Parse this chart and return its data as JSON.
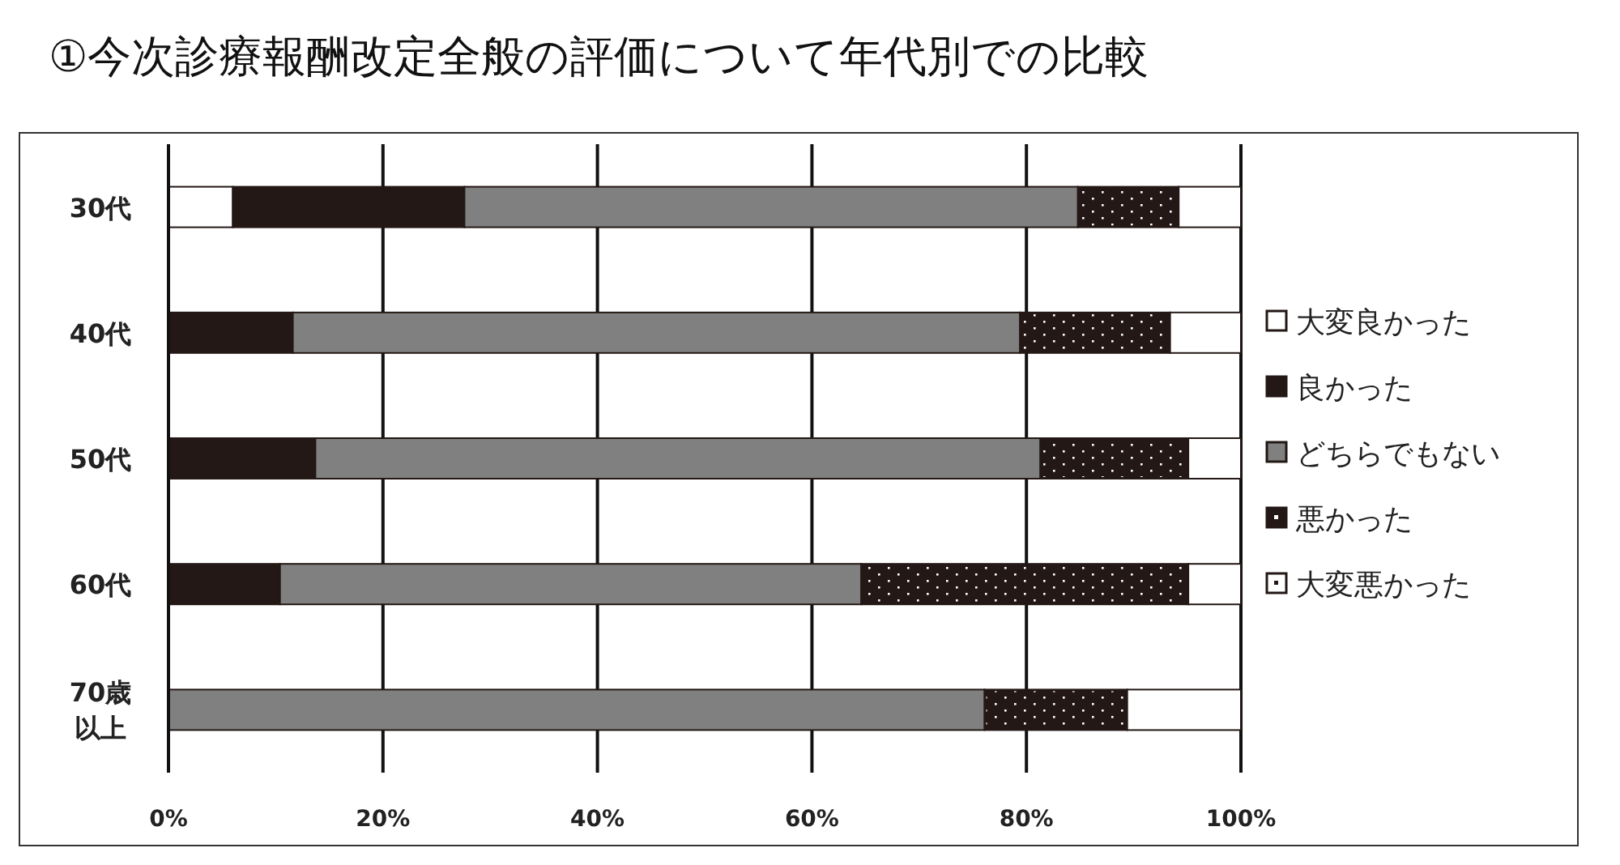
{
  "chart_data": {
    "type": "bar",
    "orientation": "horizontal",
    "stacked": true,
    "title": "①今次診療報酬改定全般の評価について年代別での比較",
    "categories": [
      "30代",
      "40代",
      "50代",
      "60代",
      "70歳以上"
    ],
    "series": [
      {
        "name": "大変良かった",
        "color": "#ffffff",
        "values": [
          6,
          0,
          0,
          0,
          0
        ]
      },
      {
        "name": "良かった",
        "color": "#231815",
        "values": [
          21.6,
          11.6,
          13.7,
          10.4,
          0
        ]
      },
      {
        "name": "どちらでもない",
        "color": "#808080",
        "values": [
          57.2,
          67.8,
          67.6,
          54.2,
          76.1
        ]
      },
      {
        "name": "悪かった",
        "color": "#231815",
        "values": [
          9.4,
          14.0,
          13.8,
          30.5,
          13.3
        ]
      },
      {
        "name": "大変悪かった",
        "color": "#ffffff",
        "values": [
          5.8,
          6.6,
          4.9,
          4.9,
          10.6
        ]
      }
    ],
    "xlim": [
      0,
      100
    ],
    "xticks": [
      {
        "value": 0,
        "label": "0%"
      },
      {
        "value": 20,
        "label": "20%"
      },
      {
        "value": 40,
        "label": "40%"
      },
      {
        "value": 60,
        "label": "60%"
      },
      {
        "value": 80,
        "label": "80%"
      },
      {
        "value": 100,
        "label": "100%"
      }
    ],
    "grid": "x",
    "legend": "right"
  }
}
